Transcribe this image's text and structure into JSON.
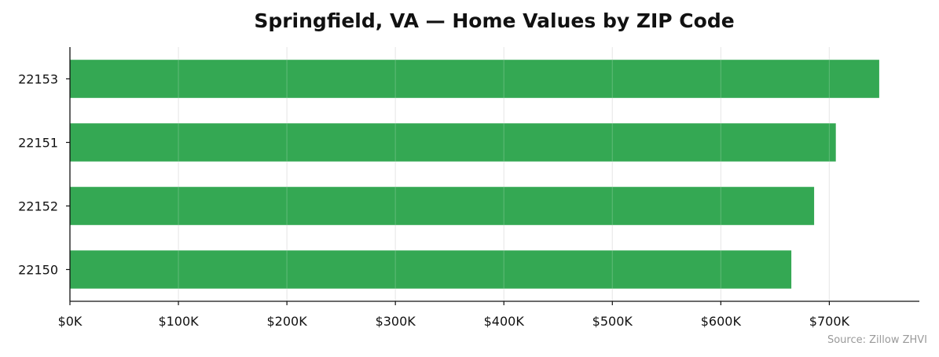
{
  "chart_data": {
    "type": "bar",
    "orientation": "horizontal",
    "title": "Springfield, VA — Home Values by ZIP Code",
    "xlabel": "",
    "ylabel": "",
    "categories": [
      "22153",
      "22151",
      "22152",
      "22150"
    ],
    "values": [
      746000,
      706000,
      686000,
      665000
    ],
    "xlim": [
      0,
      783000
    ],
    "x_ticks": [
      {
        "value": 0,
        "label": "$0K"
      },
      {
        "value": 100000,
        "label": "$100K"
      },
      {
        "value": 200000,
        "label": "$200K"
      },
      {
        "value": 300000,
        "label": "$300K"
      },
      {
        "value": 400000,
        "label": "$400K"
      },
      {
        "value": 500000,
        "label": "$500K"
      },
      {
        "value": 600000,
        "label": "$600K"
      },
      {
        "value": 700000,
        "label": "$700K"
      }
    ],
    "grid": "vertical",
    "bar_color": "#34a853",
    "legend": "none"
  },
  "source_note": "Source: Zillow ZHVI"
}
